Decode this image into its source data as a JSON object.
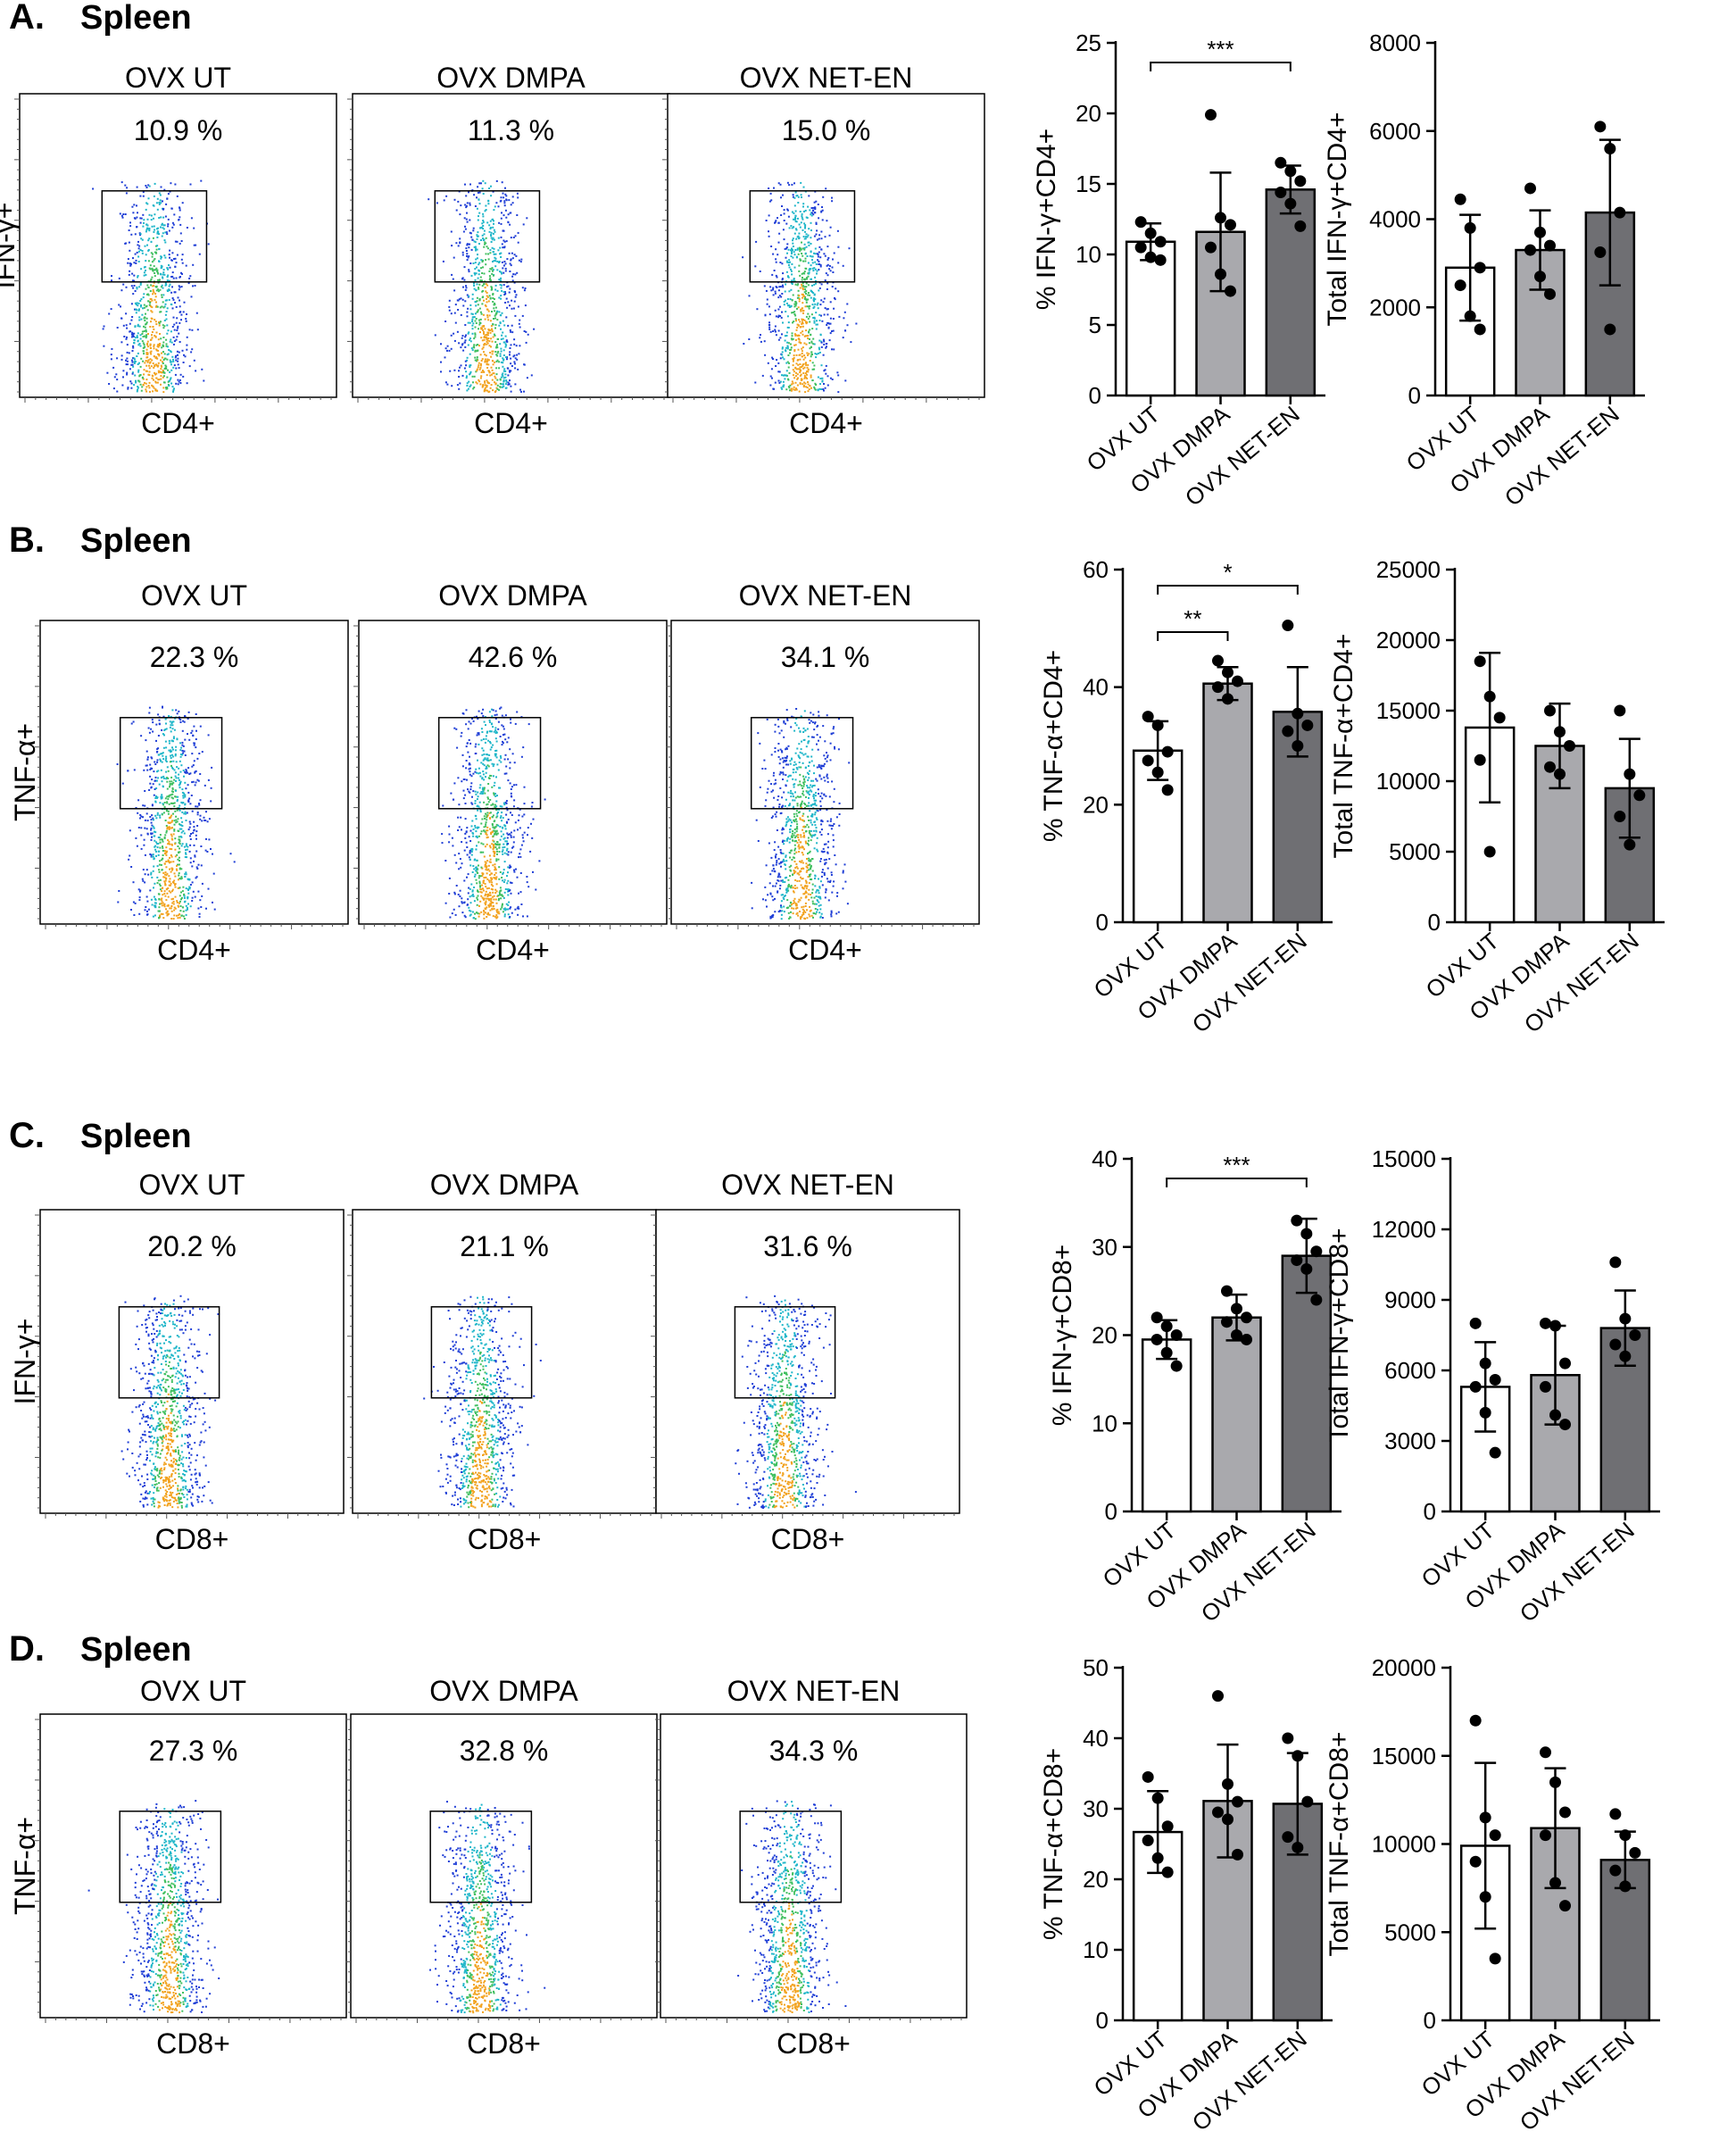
{
  "groups": [
    "OVX UT",
    "OVX DMPA",
    "OVX NET-EN"
  ],
  "bar_colors": [
    "#ffffff",
    "#a9a9ad",
    "#6f6f73"
  ],
  "panels": [
    {
      "letter": "A.",
      "tissue": "Spleen",
      "flow": {
        "y_label": "IFN-γ+",
        "x_label": "CD4+",
        "plots": [
          {
            "title": "OVX UT",
            "percent": "10.9 %"
          },
          {
            "title": "OVX DMPA",
            "percent": "11.3 %"
          },
          {
            "title": "OVX NET-EN",
            "percent": "15.0 %"
          }
        ]
      }
    },
    {
      "letter": "B.",
      "tissue": "Spleen",
      "flow": {
        "y_label": "TNF-α+",
        "x_label": "CD4+",
        "plots": [
          {
            "title": "OVX UT",
            "percent": "22.3 %"
          },
          {
            "title": "OVX DMPA",
            "percent": "42.6 %"
          },
          {
            "title": "OVX NET-EN",
            "percent": "34.1 %"
          }
        ]
      }
    },
    {
      "letter": "C.",
      "tissue": "Spleen",
      "flow": {
        "y_label": "IFN-γ+",
        "x_label": "CD8+",
        "plots": [
          {
            "title": "OVX UT",
            "percent": "20.2 %"
          },
          {
            "title": "OVX DMPA",
            "percent": "21.1 %"
          },
          {
            "title": "OVX NET-EN",
            "percent": "31.6 %"
          }
        ]
      }
    },
    {
      "letter": "D.",
      "tissue": "Spleen",
      "flow": {
        "y_label": "TNF-α+",
        "x_label": "CD8+",
        "plots": [
          {
            "title": "OVX UT",
            "percent": "27.3 %"
          },
          {
            "title": "OVX DMPA",
            "percent": "32.8 %"
          },
          {
            "title": "OVX NET-EN",
            "percent": "34.3 %"
          }
        ]
      }
    }
  ],
  "chart_data": [
    {
      "type": "bar",
      "panel": "A",
      "ylabel": "% IFN-γ+CD4+",
      "categories": [
        "OVX UT",
        "OVX DMPA",
        "OVX NET-EN"
      ],
      "values": [
        10.9,
        11.6,
        14.6
      ],
      "sd": [
        1.3,
        4.2,
        1.7
      ],
      "ylim": [
        0,
        25
      ],
      "ticks": [
        0,
        5,
        10,
        15,
        20,
        25
      ],
      "points": [
        [
          12.3,
          11.5,
          10.9,
          10.5,
          9.8,
          9.6
        ],
        [
          19.9,
          12.6,
          12.1,
          10.5,
          8.6,
          7.4
        ],
        [
          16.5,
          15.9,
          15.2,
          14.4,
          13.6,
          12.0
        ]
      ],
      "significance": [
        {
          "from": 0,
          "to": 2,
          "label": "***"
        }
      ]
    },
    {
      "type": "bar",
      "panel": "A",
      "ylabel": "Total IFN-γ+CD4+",
      "categories": [
        "OVX UT",
        "OVX DMPA",
        "OVX NET-EN"
      ],
      "values": [
        2900,
        3300,
        4150
      ],
      "sd": [
        1200,
        900,
        1650
      ],
      "ylim": [
        0,
        8000
      ],
      "ticks": [
        0,
        2000,
        4000,
        6000,
        8000
      ],
      "points": [
        [
          4450,
          3800,
          2900,
          2500,
          1800,
          1500
        ],
        [
          4700,
          3700,
          3400,
          3300,
          2700,
          2300
        ],
        [
          6100,
          5600,
          4150,
          3250,
          1500
        ]
      ],
      "significance": []
    },
    {
      "type": "bar",
      "panel": "B",
      "ylabel": "% TNF-α+CD4+",
      "categories": [
        "OVX UT",
        "OVX DMPA",
        "OVX NET-EN"
      ],
      "values": [
        29.2,
        40.6,
        35.8
      ],
      "sd": [
        5.0,
        2.8,
        7.6
      ],
      "ylim": [
        0,
        60
      ],
      "ticks": [
        0,
        20,
        40,
        60
      ],
      "points": [
        [
          35.0,
          33.5,
          29.0,
          27.5,
          25.5,
          22.5
        ],
        [
          44.5,
          42.5,
          41.0,
          40.0,
          38.0
        ],
        [
          50.5,
          35.5,
          33.5,
          32.5,
          30.0
        ]
      ],
      "significance": [
        {
          "from": 0,
          "to": 1,
          "label": "**"
        },
        {
          "from": 0,
          "to": 2,
          "label": "*"
        }
      ]
    },
    {
      "type": "bar",
      "panel": "B",
      "ylabel": "Total TNF-α+CD4+",
      "categories": [
        "OVX UT",
        "OVX DMPA",
        "OVX NET-EN"
      ],
      "values": [
        13800,
        12500,
        9500
      ],
      "sd": [
        5300,
        3000,
        3500
      ],
      "ylim": [
        0,
        25000
      ],
      "ticks": [
        0,
        5000,
        10000,
        15000,
        20000,
        25000
      ],
      "points": [
        [
          18500,
          16000,
          14500,
          11500,
          5000
        ],
        [
          15000,
          13500,
          12500,
          11000,
          10500
        ],
        [
          15000,
          10500,
          9000,
          7500,
          5500
        ]
      ],
      "significance": []
    },
    {
      "type": "bar",
      "panel": "C",
      "ylabel": "% IFN-γ+CD8+",
      "categories": [
        "OVX UT",
        "OVX DMPA",
        "OVX NET-EN"
      ],
      "values": [
        19.5,
        22.0,
        29.0
      ],
      "sd": [
        2.2,
        2.6,
        4.2
      ],
      "ylim": [
        0,
        40
      ],
      "ticks": [
        0,
        10,
        20,
        30,
        40
      ],
      "points": [
        [
          22.0,
          21.0,
          20.0,
          19.5,
          18.0,
          16.5
        ],
        [
          25.0,
          23.0,
          22.0,
          21.5,
          20.0,
          19.5
        ],
        [
          33.0,
          31.5,
          29.5,
          28.5,
          27.5,
          24.0
        ]
      ],
      "significance": [
        {
          "from": 0,
          "to": 2,
          "label": "***"
        }
      ]
    },
    {
      "type": "bar",
      "panel": "C",
      "ylabel": "Total IFN-γ+CD8+",
      "categories": [
        "OVX UT",
        "OVX DMPA",
        "OVX NET-EN"
      ],
      "values": [
        5300,
        5800,
        7800
      ],
      "sd": [
        1900,
        2100,
        1600
      ],
      "ylim": [
        0,
        15000
      ],
      "ticks": [
        0,
        3000,
        6000,
        9000,
        12000,
        15000
      ],
      "points": [
        [
          8000,
          6300,
          5600,
          5300,
          4200,
          2500
        ],
        [
          8000,
          7900,
          6300,
          5300,
          4100,
          3700
        ],
        [
          10600,
          8200,
          7500,
          7100,
          6600
        ]
      ],
      "significance": []
    },
    {
      "type": "bar",
      "panel": "D",
      "ylabel": "% TNF-α+CD8+",
      "categories": [
        "OVX UT",
        "OVX DMPA",
        "OVX NET-EN"
      ],
      "values": [
        26.7,
        31.1,
        30.7
      ],
      "sd": [
        5.8,
        8.0,
        7.2
      ],
      "ylim": [
        0,
        50
      ],
      "ticks": [
        0,
        10,
        20,
        30,
        40,
        50
      ],
      "points": [
        [
          34.5,
          31.5,
          27.5,
          25.5,
          23.0,
          21.0
        ],
        [
          46.0,
          33.5,
          31.0,
          29.5,
          28.5,
          23.5
        ],
        [
          40.0,
          37.5,
          31.0,
          26.0,
          24.5
        ]
      ],
      "significance": []
    },
    {
      "type": "bar",
      "panel": "D",
      "ylabel": "Total TNF-α+CD8+",
      "categories": [
        "OVX UT",
        "OVX DMPA",
        "OVX NET-EN"
      ],
      "values": [
        9900,
        10900,
        9100
      ],
      "sd": [
        4700,
        3400,
        1600
      ],
      "ylim": [
        0,
        20000
      ],
      "ticks": [
        0,
        5000,
        10000,
        15000,
        20000
      ],
      "points": [
        [
          17000,
          11500,
          10500,
          9000,
          7000,
          3500
        ],
        [
          15200,
          13500,
          11800,
          10500,
          7800,
          6500
        ],
        [
          11700,
          10500,
          9500,
          8500,
          7600
        ]
      ],
      "significance": []
    }
  ]
}
